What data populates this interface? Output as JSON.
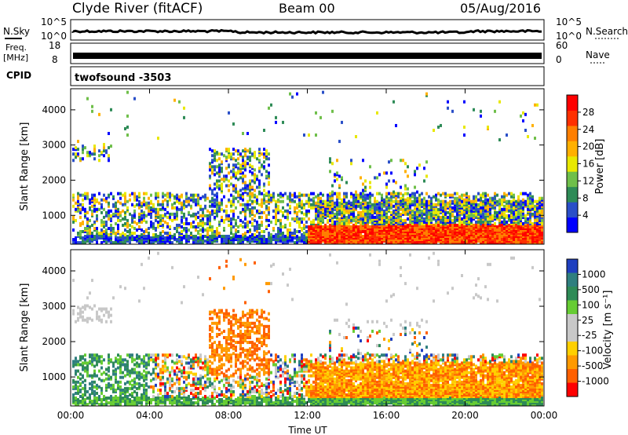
{
  "header": {
    "station": "Clyde River (fitACF)",
    "beam": "Beam 00",
    "date": "05/Aug/2016"
  },
  "panels": {
    "nsky": {
      "label": "N.Sky",
      "top_tick": "10^5",
      "bottom_tick": "10^0",
      "right_label": "N.Search",
      "right_top_tick": "10^5",
      "right_bottom_tick": "10^0"
    },
    "freq": {
      "label_line1": "Freq.",
      "label_line2": "[MHz]",
      "top_tick": "18",
      "bottom_tick": "8",
      "right_label": "Nave",
      "right_top_tick": "60",
      "right_bottom_tick": "0"
    },
    "cpid": {
      "label": "CPID",
      "value": "twofsound -3503"
    }
  },
  "colors": {
    "power_scale": [
      "#0000ff",
      "#2a4fc8",
      "#2e8b57",
      "#6fbf4a",
      "#e8e800",
      "#ffb000",
      "#ff7f00",
      "#ff3000",
      "#ff0000"
    ],
    "velocity_scale": [
      "#ff0000",
      "#ff6000",
      "#ff9a00",
      "#ffd000",
      "#c8c8c8",
      "#c8c8c8",
      "#66cc33",
      "#2e8b57",
      "#2f7f7f",
      "#1f3fbf"
    ]
  },
  "chart_data": [
    {
      "type": "heatmap",
      "name": "power",
      "ylabel": "Slant Range [km]",
      "xlabel": "Time UT",
      "x_ticks": [
        "00:00",
        "04:00",
        "08:00",
        "12:00",
        "16:00",
        "20:00",
        "00:00"
      ],
      "x_range": [
        0,
        24
      ],
      "y_ticks": [
        1000,
        2000,
        3000,
        4000
      ],
      "y_range": [
        180,
        4600
      ],
      "colorbar": {
        "label": "Power [dB]",
        "ticks": [
          4,
          8,
          12,
          16,
          20,
          24,
          28
        ],
        "range": [
          0,
          32
        ]
      }
    },
    {
      "type": "heatmap",
      "name": "velocity",
      "ylabel": "Slant Range [km]",
      "xlabel": "Time UT",
      "x_ticks": [
        "00:00",
        "04:00",
        "08:00",
        "12:00",
        "16:00",
        "20:00",
        "00:00"
      ],
      "x_range": [
        0,
        24
      ],
      "y_ticks": [
        1000,
        2000,
        3000,
        4000
      ],
      "y_range": [
        180,
        4600
      ],
      "colorbar": {
        "label": "Velocity [m s⁻¹]",
        "ticks": [
          "1000",
          "500",
          "100",
          "25",
          "-25",
          "-100",
          "-500",
          "-1000"
        ]
      }
    }
  ]
}
